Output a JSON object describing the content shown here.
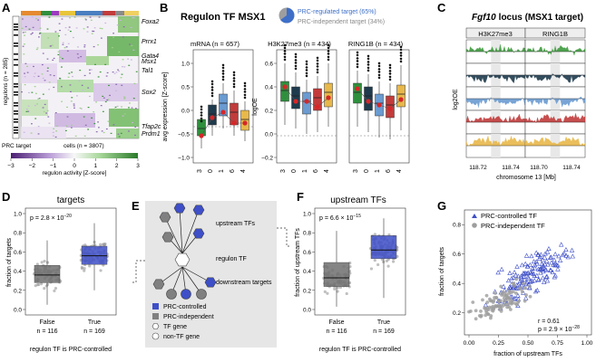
{
  "panels": {
    "A": {
      "letter": "A",
      "regulon_axis_label": "regulons (n = 285)",
      "prc_target_label": "PRC target",
      "cells_label": "cells (n = 3807)",
      "gene_labels": [
        "Foxa2",
        "Prrx1",
        "Gata4",
        "Msx1",
        "Tal1",
        "Sox2",
        "Tfap2c",
        "Prdm1"
      ],
      "colorbar_ticks": [
        "−3",
        "−2",
        "−1",
        "0",
        "1",
        "2",
        "3"
      ],
      "colorbar_label": "regulon activity [Z-score]",
      "colors": {
        "low": "#5b2a86",
        "mid": "#f7f7f7",
        "high": "#2e8b2e"
      },
      "cluster_colors": [
        "#e58a2f",
        "#2f8f3d",
        "#9a3bbf",
        "#e8c53a",
        "#4a7fc1",
        "#c23b3b",
        "#8a8a8a",
        "#f0d060"
      ]
    },
    "B": {
      "letter": "B",
      "title": "Regulon TF MSX1",
      "legend": [
        {
          "label": "PRC-regulated target (65%)",
          "color": "#3e6fc8",
          "fraction": 0.65
        },
        {
          "label": "PRC-independent target (34%)",
          "color": "#9e9e9e",
          "fraction": 0.34
        }
      ],
      "subpanels": [
        {
          "title": "mRNA (n = 657)",
          "ylabel": "avg expression [Z-score]",
          "yticks": [
            "1.0",
            "0.5",
            "0.0",
            "−0.5",
            "−1.0"
          ]
        },
        {
          "title": "H3K27me3 (n = 434)",
          "ylabel": "logOE",
          "yticks": [
            "0.6",
            "0.4",
            "0.2",
            "0.0",
            "−0.2"
          ]
        },
        {
          "title": "RING1B (n = 434)",
          "ylabel": "",
          "yticks": []
        }
      ],
      "xticks": [
        "3",
        "0",
        "1",
        "6",
        "4"
      ],
      "box_colors": [
        "#2f8f3d",
        "#1f3b4d",
        "#6a9bd1",
        "#c23b3b",
        "#e8b84a"
      ]
    },
    "C": {
      "letter": "C",
      "title_gene": "Fgf10",
      "title_rest": "locus (MSX1 target)",
      "col_labels": [
        "H3K27me3",
        "RING1B"
      ],
      "ylabel": "log2OE",
      "xticks": [
        "118.72",
        "118.74",
        "118.70",
        "118.74"
      ],
      "xlabel": "chromosome 13 [Mb]",
      "track_colors": [
        "#3e9b3e",
        "#1f3b4d",
        "#6a9bd1",
        "#c23b3b",
        "#e8b84a"
      ]
    },
    "D": {
      "letter": "D",
      "title": "targets",
      "pvalue_base": "p = 2.8 × 10",
      "pvalue_exp": "−20",
      "ylabel": "fraction of targets",
      "yticks": [
        "1.0",
        "0.8",
        "0.6",
        "0.4",
        "0.2",
        "0.0"
      ],
      "groups": [
        {
          "label": "False",
          "n": "n = 116"
        },
        {
          "label": "True",
          "n": "n = 169"
        }
      ],
      "xlabel": "regulon TF is PRC-controlled"
    },
    "E": {
      "letter": "E",
      "labels": [
        "upstream TFs",
        "regulon TF",
        "downstream targets"
      ],
      "legend": [
        {
          "label": "PRC-controlled",
          "shape": "square-blue"
        },
        {
          "label": "PRC-independent",
          "shape": "square-gray"
        },
        {
          "label": "TF gene",
          "shape": "hexagon"
        },
        {
          "label": "non-TF gene",
          "shape": "circle"
        }
      ]
    },
    "F": {
      "letter": "F",
      "title": "upstream TFs",
      "pvalue_base": "p = 6.6 × 10",
      "pvalue_exp": "−15",
      "ylabel": "fraction of upstream TFs",
      "yticks": [
        "1.0",
        "0.8",
        "0.6",
        "0.4",
        "0.2",
        "0.0"
      ],
      "groups": [
        {
          "label": "False",
          "n": "n = 116"
        },
        {
          "label": "True",
          "n": "n = 169"
        }
      ],
      "xlabel": "regulon TF is PRC-controlled"
    },
    "G": {
      "letter": "G",
      "legend": [
        {
          "label": "PRC-controlled TF",
          "color": "#3e4fc8"
        },
        {
          "label": "PRC-independent TF",
          "color": "#9e9e9e"
        }
      ],
      "stats": {
        "r": "r = 0.61",
        "p_base": "p = 2.9 × 10",
        "p_exp": "−28"
      },
      "xlabel": "fraction of upstream TFs",
      "ylabel": "fraction of targets",
      "xticks": [
        "0.00",
        "0.25",
        "0.50",
        "0.75",
        "1.00"
      ],
      "yticks": [
        "0.8",
        "0.6",
        "0.4",
        "0.2"
      ]
    }
  }
}
